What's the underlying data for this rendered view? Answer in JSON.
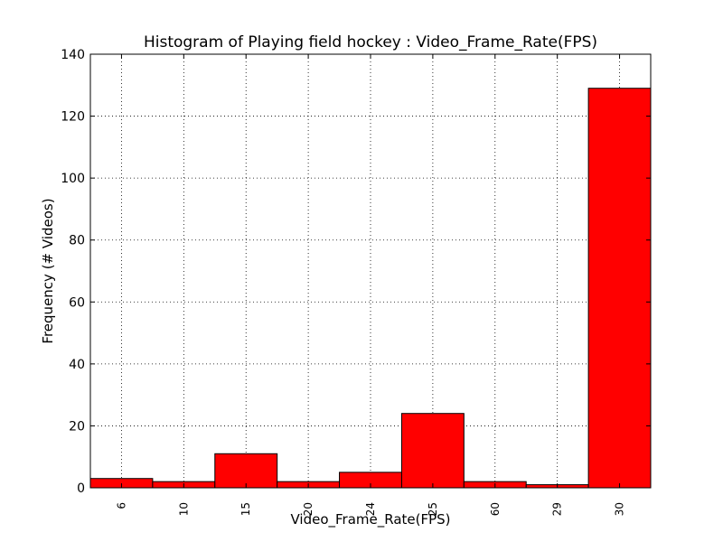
{
  "chart_data": {
    "type": "bar",
    "title": "Histogram of Playing field hockey : Video_Frame_Rate(FPS)",
    "xlabel": "Video_Frame_Rate(FPS)",
    "ylabel": "Frequency (# Videos)",
    "categories": [
      "6",
      "10",
      "15",
      "20",
      "24",
      "25",
      "60",
      "29",
      "30"
    ],
    "values": [
      3,
      2,
      11,
      2,
      5,
      24,
      2,
      1,
      129
    ],
    "ylim": [
      0,
      140
    ],
    "yticks": [
      "0",
      "20",
      "40",
      "60",
      "80",
      "100",
      "120",
      "140"
    ],
    "grid": true,
    "bar_color": "#ff0000"
  }
}
